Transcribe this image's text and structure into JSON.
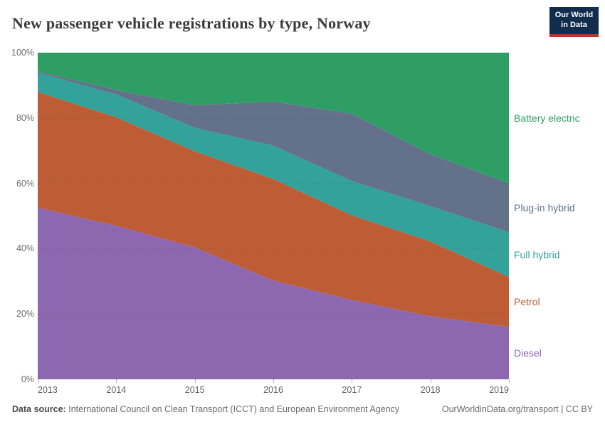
{
  "header": {
    "title": "New passenger vehicle registrations by type, Norway",
    "logo": {
      "line1": "Our World",
      "line2": "in Data",
      "bg_color": "#102d4e",
      "bar_color": "#b8352b"
    }
  },
  "chart_data": {
    "type": "area",
    "stacked": true,
    "title": "New passenger vehicle registrations by type, Norway",
    "x": [
      2013,
      2014,
      2015,
      2016,
      2017,
      2018,
      2019
    ],
    "x_tick_labels": [
      "2013",
      "2014",
      "2015",
      "2016",
      "2017",
      "2018",
      "2019"
    ],
    "series": [
      {
        "name": "Diesel",
        "color": "#8d68b1",
        "values": [
          52.6,
          47.0,
          40.4,
          30.2,
          24.3,
          19.3,
          16.1
        ]
      },
      {
        "name": "Petrol",
        "color": "#bd5c35",
        "values": [
          35.4,
          33.2,
          29.4,
          31.1,
          25.9,
          22.9,
          15.2
        ]
      },
      {
        "name": "Full hybrid",
        "color": "#33a29a",
        "values": [
          5.9,
          7.0,
          7.2,
          10.2,
          10.5,
          10.8,
          13.7
        ]
      },
      {
        "name": "Plug-in hybrid",
        "color": "#63718a",
        "values": [
          0.4,
          1.3,
          6.9,
          13.5,
          20.6,
          15.9,
          15.0
        ]
      },
      {
        "name": "Battery electric",
        "color": "#2f9e64",
        "values": [
          5.7,
          11.5,
          16.1,
          15.0,
          18.7,
          31.1,
          40.0
        ]
      }
    ],
    "ylim": [
      0,
      100
    ],
    "ytick_values": [
      0,
      20,
      40,
      60,
      80,
      100
    ],
    "ytick_labels": [
      "0%",
      "20%",
      "40%",
      "60%",
      "80%",
      "100%"
    ],
    "grid": "dashed-horizontal",
    "legend_position": "right",
    "units": "%"
  },
  "footer": {
    "datasource_label": "Data source:",
    "datasource_text": "International Council on Clean Transport (ICCT) and European Environment Agency",
    "link_text": "OurWorldinData.org/transport | CC BY"
  }
}
